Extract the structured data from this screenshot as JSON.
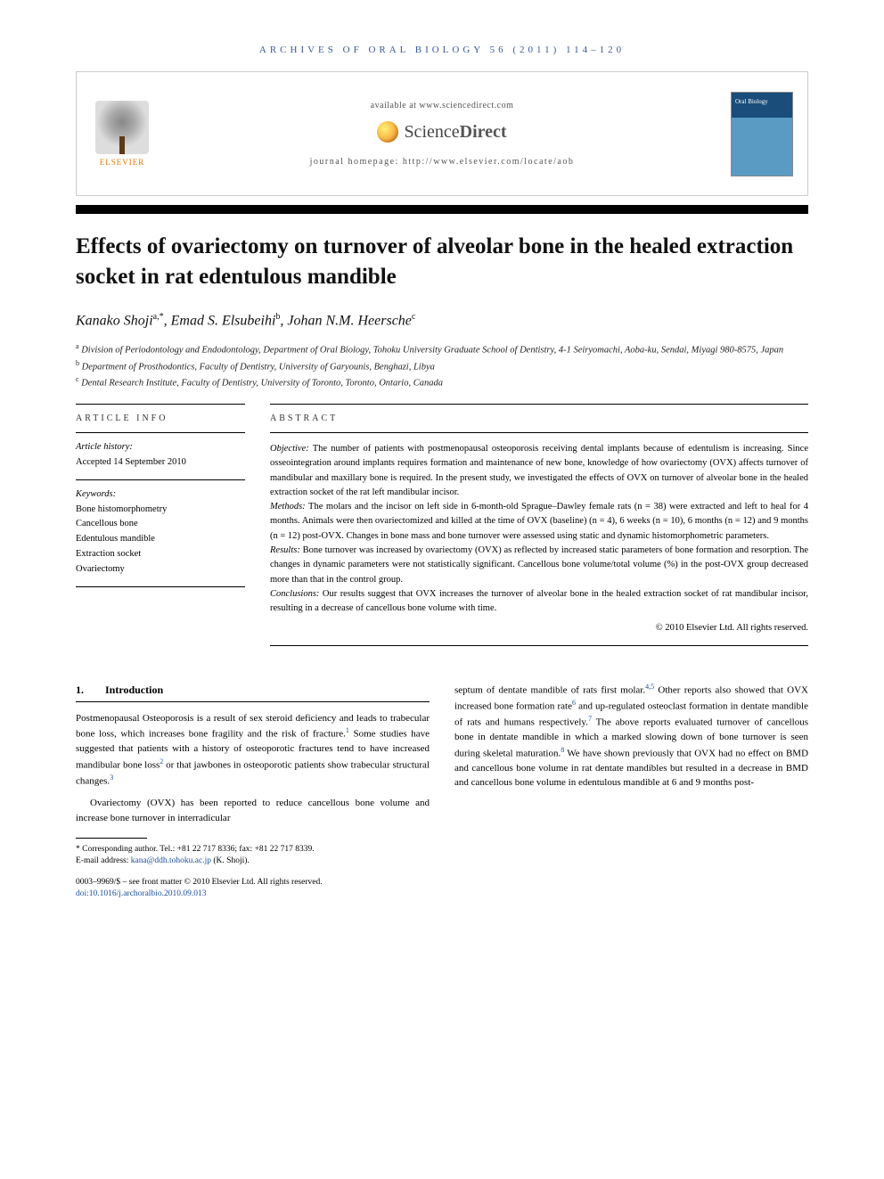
{
  "journal_header": "ARCHIVES OF ORAL BIOLOGY 56 (2011) 114–120",
  "header": {
    "available": "available at www.sciencedirect.com",
    "sd_brand_light": "Science",
    "sd_brand_bold": "Direct",
    "homepage": "journal homepage: http://www.elsevier.com/locate/aob",
    "elsevier": "ELSEVIER",
    "cover_title": "Oral Biology"
  },
  "title": "Effects of ovariectomy on turnover of alveolar bone in the healed extraction socket in rat edentulous mandible",
  "authors_html": "Kanako Shoji<sup>a,*</sup>, Emad S. Elsubeihi<sup>b</sup>, Johan N.M. Heersche<sup>c</sup>",
  "affiliations": {
    "a": "Division of Periodontology and Endodontology, Department of Oral Biology, Tohoku University Graduate School of Dentistry, 4-1 Seiryomachi, Aoba-ku, Sendai, Miyagi 980-8575, Japan",
    "b": "Department of Prosthodontics, Faculty of Dentistry, University of Garyounis, Benghazi, Libya",
    "c": "Dental Research Institute, Faculty of Dentistry, University of Toronto, Toronto, Ontario, Canada"
  },
  "info_label": "ARTICLE INFO",
  "abstract_label": "ABSTRACT",
  "history": {
    "head": "Article history:",
    "accepted": "Accepted 14 September 2010"
  },
  "keywords": {
    "head": "Keywords:",
    "items": [
      "Bone histomorphometry",
      "Cancellous bone",
      "Edentulous mandible",
      "Extraction socket",
      "Ovariectomy"
    ]
  },
  "abstract": {
    "objective_head": "Objective:",
    "objective": "The number of patients with postmenopausal osteoporosis receiving dental implants because of edentulism is increasing. Since osseointegration around implants requires formation and maintenance of new bone, knowledge of how ovariectomy (OVX) affects turnover of mandibular and maxillary bone is required. In the present study, we investigated the effects of OVX on turnover of alveolar bone in the healed extraction socket of the rat left mandibular incisor.",
    "methods_head": "Methods:",
    "methods": "The molars and the incisor on left side in 6-month-old Sprague–Dawley female rats (n = 38) were extracted and left to heal for 4 months. Animals were then ovariectomized and killed at the time of OVX (baseline) (n = 4), 6 weeks (n = 10), 6 months (n = 12) and 9 months (n = 12) post-OVX. Changes in bone mass and bone turnover were assessed using static and dynamic histomorphometric parameters.",
    "results_head": "Results:",
    "results": "Bone turnover was increased by ovariectomy (OVX) as reflected by increased static parameters of bone formation and resorption. The changes in dynamic parameters were not statistically significant. Cancellous bone volume/total volume (%) in the post-OVX group decreased more than that in the control group.",
    "conclusions_head": "Conclusions:",
    "conclusions": "Our results suggest that OVX increases the turnover of alveolar bone in the healed extraction socket of rat mandibular incisor, resulting in a decrease of cancellous bone volume with time.",
    "copyright": "© 2010 Elsevier Ltd. All rights reserved."
  },
  "body": {
    "section_num": "1.",
    "section_title": "Introduction",
    "p1": "Postmenopausal Osteoporosis is a result of sex steroid deficiency and leads to trabecular bone loss, which increases bone fragility and the risk of fracture.",
    "p1_cont": " Some studies have suggested that patients with a history of osteoporotic fractures tend to have increased mandibular bone loss",
    "p1_cont2": " or that jawbones in osteoporotic patients show trabecular structural changes.",
    "p2": "Ovariectomy (OVX) has been reported to reduce cancellous bone volume and increase bone turnover in interradicular",
    "col2_p1": "septum of dentate mandible of rats first molar.",
    "col2_p1b": " Other reports also showed that OVX increased bone formation rate",
    "col2_p1c": " and up-regulated osteoclast formation in dentate mandible of rats and humans respectively.",
    "col2_p1d": " The above reports evaluated turnover of cancellous bone in dentate mandible in which a marked slowing down of bone turnover is seen during skeletal maturation.",
    "col2_p1e": " We have shown previously that OVX had no effect on BMD and cancellous bone volume in rat dentate mandibles but resulted in a decrease in BMD and cancellous bone volume in edentulous mandible at 6 and 9 months post-"
  },
  "footnote": {
    "corr": "* Corresponding author. Tel.: +81 22 717 8336; fax: +81 22 717 8339.",
    "email_label": "E-mail address: ",
    "email": "kana@ddh.tohoku.ac.jp",
    "email_suffix": " (K. Shoji)."
  },
  "footer": {
    "line1": "0003–9969/$ – see front matter © 2010 Elsevier Ltd. All rights reserved.",
    "doi": "doi:10.1016/j.archoralbio.2010.09.013"
  },
  "refs": {
    "r1": "1",
    "r2": "2",
    "r3": "3",
    "r45": "4,5",
    "r6": "6",
    "r7": "7",
    "r8": "8"
  }
}
